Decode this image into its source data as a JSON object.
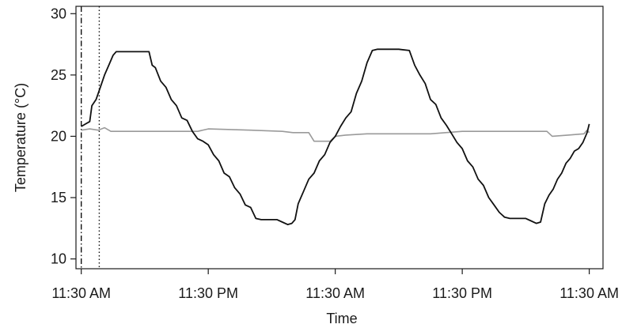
{
  "chart_data": {
    "type": "line",
    "title": "",
    "xlabel": "Time",
    "ylabel": "Temperature (°C)",
    "x_unit": "hours since first tick",
    "xlim": [
      -0.5,
      49.3
    ],
    "ylim": [
      9.2,
      30.6
    ],
    "x_ticks": [
      {
        "x": 0,
        "label": "11:30 AM"
      },
      {
        "x": 12,
        "label": "11:30 PM"
      },
      {
        "x": 24,
        "label": "11:30 AM"
      },
      {
        "x": 36,
        "label": "11:30 PM"
      },
      {
        "x": 48,
        "label": "11:30 AM"
      }
    ],
    "y_ticks": [
      10,
      15,
      20,
      25,
      30
    ],
    "grid": false,
    "legend": "none",
    "vlines": [
      {
        "x": 0.0,
        "style": "dashdot",
        "color": "#111111"
      },
      {
        "x": 1.7,
        "style": "dotted",
        "color": "#111111"
      }
    ],
    "series": [
      {
        "color": "#111111",
        "points": [
          [
            0.0,
            20.8
          ],
          [
            0.4,
            21.0
          ],
          [
            0.8,
            21.2
          ],
          [
            1.0,
            22.5
          ],
          [
            1.4,
            23.0
          ],
          [
            1.8,
            24.0
          ],
          [
            2.2,
            25.0
          ],
          [
            2.6,
            25.8
          ],
          [
            3.0,
            26.6
          ],
          [
            3.3,
            26.9
          ],
          [
            4.0,
            26.9
          ],
          [
            5.0,
            26.9
          ],
          [
            6.0,
            26.9
          ],
          [
            6.4,
            26.9
          ],
          [
            6.7,
            25.8
          ],
          [
            7.0,
            25.6
          ],
          [
            7.5,
            24.5
          ],
          [
            8.0,
            24.0
          ],
          [
            8.5,
            23.0
          ],
          [
            9.0,
            22.5
          ],
          [
            9.5,
            21.5
          ],
          [
            10.0,
            21.3
          ],
          [
            10.5,
            20.4
          ],
          [
            11.0,
            19.8
          ],
          [
            11.5,
            19.6
          ],
          [
            12.0,
            19.3
          ],
          [
            12.5,
            18.5
          ],
          [
            13.0,
            18.0
          ],
          [
            13.5,
            17.0
          ],
          [
            14.0,
            16.7
          ],
          [
            14.5,
            15.8
          ],
          [
            15.0,
            15.3
          ],
          [
            15.5,
            14.4
          ],
          [
            16.0,
            14.2
          ],
          [
            16.5,
            13.3
          ],
          [
            17.0,
            13.2
          ],
          [
            17.5,
            13.2
          ],
          [
            18.0,
            13.2
          ],
          [
            18.5,
            13.2
          ],
          [
            19.0,
            13.0
          ],
          [
            19.5,
            12.8
          ],
          [
            19.9,
            12.9
          ],
          [
            20.2,
            13.2
          ],
          [
            20.5,
            14.5
          ],
          [
            21.0,
            15.5
          ],
          [
            21.5,
            16.5
          ],
          [
            22.0,
            17.0
          ],
          [
            22.5,
            18.0
          ],
          [
            23.0,
            18.5
          ],
          [
            23.5,
            19.5
          ],
          [
            24.0,
            20.0
          ],
          [
            24.5,
            20.8
          ],
          [
            25.0,
            21.5
          ],
          [
            25.5,
            22.0
          ],
          [
            26.0,
            23.5
          ],
          [
            26.5,
            24.5
          ],
          [
            27.0,
            26.0
          ],
          [
            27.5,
            27.0
          ],
          [
            28.0,
            27.1
          ],
          [
            29.0,
            27.1
          ],
          [
            30.0,
            27.1
          ],
          [
            31.0,
            27.0
          ],
          [
            31.5,
            25.8
          ],
          [
            32.0,
            25.0
          ],
          [
            32.5,
            24.3
          ],
          [
            33.0,
            23.0
          ],
          [
            33.5,
            22.6
          ],
          [
            34.0,
            21.5
          ],
          [
            34.5,
            20.9
          ],
          [
            35.0,
            20.2
          ],
          [
            35.5,
            19.5
          ],
          [
            36.0,
            19.0
          ],
          [
            36.5,
            18.0
          ],
          [
            37.0,
            17.5
          ],
          [
            37.5,
            16.5
          ],
          [
            38.0,
            16.0
          ],
          [
            38.5,
            15.0
          ],
          [
            39.0,
            14.4
          ],
          [
            39.5,
            13.8
          ],
          [
            40.0,
            13.4
          ],
          [
            40.5,
            13.3
          ],
          [
            41.0,
            13.3
          ],
          [
            41.5,
            13.3
          ],
          [
            42.0,
            13.3
          ],
          [
            42.5,
            13.1
          ],
          [
            43.0,
            12.9
          ],
          [
            43.4,
            13.0
          ],
          [
            43.8,
            14.5
          ],
          [
            44.2,
            15.2
          ],
          [
            44.6,
            15.7
          ],
          [
            45.0,
            16.5
          ],
          [
            45.4,
            17.0
          ],
          [
            45.8,
            17.8
          ],
          [
            46.2,
            18.2
          ],
          [
            46.6,
            18.8
          ],
          [
            47.0,
            19.0
          ],
          [
            47.4,
            19.5
          ],
          [
            47.8,
            20.3
          ],
          [
            48.0,
            21.0
          ]
        ]
      },
      {
        "color": "#9a9a9a",
        "points": [
          [
            0.0,
            20.5
          ],
          [
            0.8,
            20.6
          ],
          [
            1.6,
            20.5
          ],
          [
            2.2,
            20.7
          ],
          [
            2.8,
            20.4
          ],
          [
            4.0,
            20.4
          ],
          [
            6.0,
            20.4
          ],
          [
            8.0,
            20.4
          ],
          [
            11.0,
            20.4
          ],
          [
            12.0,
            20.6
          ],
          [
            16.0,
            20.5
          ],
          [
            19.0,
            20.4
          ],
          [
            20.0,
            20.3
          ],
          [
            21.5,
            20.3
          ],
          [
            22.0,
            19.6
          ],
          [
            23.5,
            19.6
          ],
          [
            24.0,
            20.0
          ],
          [
            25.0,
            20.1
          ],
          [
            27.0,
            20.2
          ],
          [
            30.0,
            20.2
          ],
          [
            33.0,
            20.2
          ],
          [
            36.0,
            20.4
          ],
          [
            40.0,
            20.4
          ],
          [
            44.0,
            20.4
          ],
          [
            44.5,
            20.0
          ],
          [
            46.0,
            20.1
          ],
          [
            47.5,
            20.2
          ],
          [
            47.8,
            20.5
          ],
          [
            48.0,
            20.3
          ]
        ]
      }
    ]
  }
}
